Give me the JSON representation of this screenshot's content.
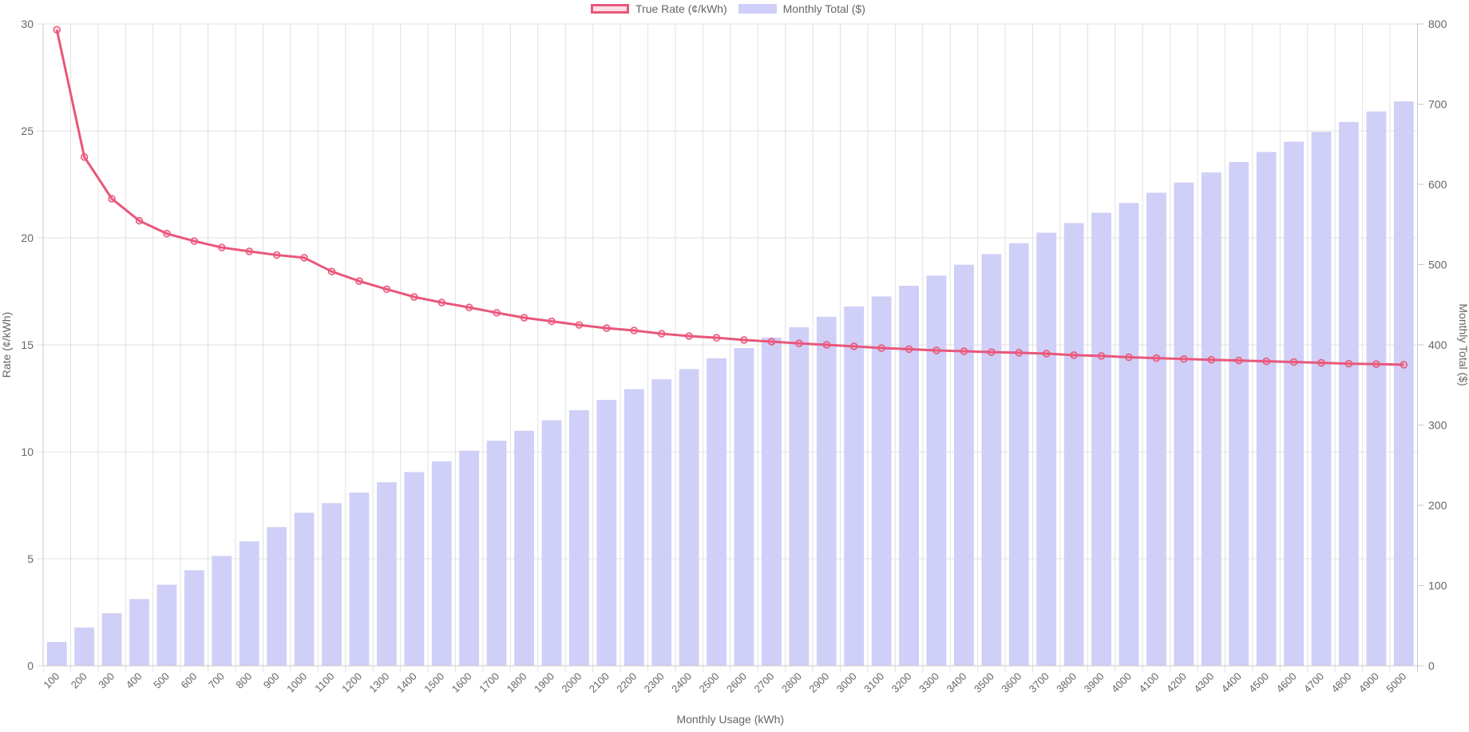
{
  "chart_data": {
    "type": "bar+line",
    "title": "",
    "xlabel": "Monthly Usage (kWh)",
    "ylabel": "Rate (¢/kWh)",
    "y2label": "Monthly Total ($)",
    "ylim": [
      0,
      30
    ],
    "y2lim": [
      0,
      800
    ],
    "yticks": [
      0,
      5,
      10,
      15,
      20,
      25,
      30
    ],
    "y2ticks": [
      0,
      100,
      200,
      300,
      400,
      500,
      600,
      700,
      800
    ],
    "grid": true,
    "legend_position": "top",
    "categories": [
      "100",
      "200",
      "300",
      "400",
      "500",
      "600",
      "700",
      "800",
      "900",
      "1000",
      "1100",
      "1200",
      "1300",
      "1400",
      "1500",
      "1600",
      "1700",
      "1800",
      "1900",
      "2000",
      "2100",
      "2200",
      "2300",
      "2400",
      "2500",
      "2600",
      "2700",
      "2800",
      "2900",
      "3000",
      "3100",
      "3200",
      "3300",
      "3400",
      "3500",
      "3600",
      "3700",
      "3800",
      "3900",
      "4000",
      "4100",
      "4200",
      "4300",
      "4400",
      "4500",
      "4600",
      "4700",
      "4800",
      "4900",
      "5000"
    ],
    "series": [
      {
        "name": "True Rate (¢/kWh)",
        "type": "line",
        "axis": "left",
        "color": "#e8577a",
        "values": [
          29.73,
          23.78,
          21.83,
          20.8,
          20.2,
          19.85,
          19.55,
          19.37,
          19.2,
          19.07,
          18.43,
          17.98,
          17.6,
          17.24,
          16.98,
          16.75,
          16.5,
          16.27,
          16.1,
          15.93,
          15.78,
          15.67,
          15.52,
          15.41,
          15.33,
          15.23,
          15.15,
          15.07,
          15.0,
          14.93,
          14.85,
          14.8,
          14.74,
          14.7,
          14.66,
          14.63,
          14.59,
          14.52,
          14.48,
          14.42,
          14.38,
          14.34,
          14.3,
          14.27,
          14.23,
          14.2,
          14.16,
          14.12,
          14.1,
          14.07
        ]
      },
      {
        "name": "Monthly Total ($)",
        "type": "bar",
        "axis": "right",
        "color": "#cfcff7",
        "values": [
          29.7,
          47.6,
          65.5,
          83.2,
          101.0,
          119.1,
          136.9,
          155.0,
          172.8,
          190.7,
          202.7,
          215.8,
          228.8,
          241.4,
          254.7,
          268.0,
          280.5,
          292.9,
          305.9,
          318.6,
          331.4,
          344.7,
          357.0,
          369.8,
          383.3,
          396.0,
          409.1,
          422.0,
          435.0,
          447.9,
          460.4,
          473.6,
          486.4,
          499.8,
          513.1,
          526.7,
          539.8,
          551.8,
          564.7,
          576.8,
          589.6,
          602.3,
          614.9,
          627.9,
          640.4,
          653.2,
          665.5,
          677.8,
          690.9,
          703.5
        ]
      }
    ]
  },
  "legend": {
    "items": [
      {
        "label": "True Rate (¢/kWh)",
        "swatch": "line"
      },
      {
        "label": "Monthly Total ($)",
        "swatch": "bar"
      }
    ]
  },
  "colors": {
    "line": "#e8577a",
    "line_fill": "rgba(255,99,132,0.2)",
    "bar": "#cfcff7",
    "grid": "#e1e1e1",
    "axis": "#c8c8c8",
    "text": "#666666"
  }
}
